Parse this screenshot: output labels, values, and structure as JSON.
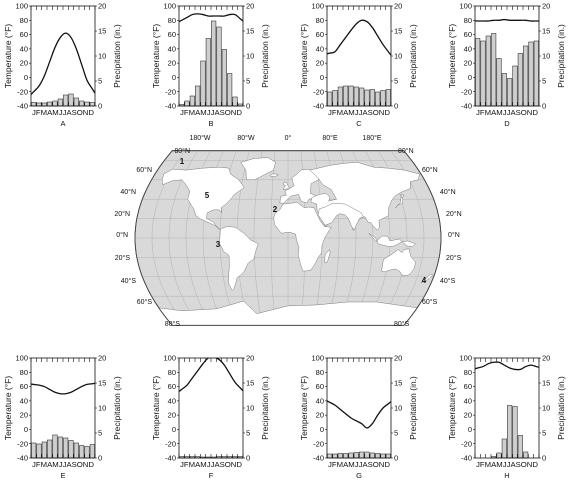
{
  "climographs": [
    {
      "id": "A",
      "temp_f": [
        -20,
        -12,
        2,
        22,
        42,
        56,
        62,
        56,
        40,
        18,
        -4,
        -16
      ],
      "precip_in": [
        0.7,
        0.6,
        0.6,
        0.8,
        1.0,
        1.4,
        2.2,
        2.4,
        1.6,
        1.0,
        0.8,
        0.7
      ]
    },
    {
      "id": "B",
      "temp_f": [
        80,
        84,
        88,
        89,
        88,
        86,
        86,
        86,
        86,
        88,
        88,
        82
      ],
      "precip_in": [
        0.3,
        1.0,
        2.0,
        4.0,
        9.0,
        13.5,
        17.0,
        15.8,
        11.3,
        6.5,
        1.8,
        0.4
      ]
    },
    {
      "id": "C",
      "temp_f": [
        34,
        36,
        46,
        56,
        66,
        75,
        80,
        78,
        70,
        58,
        46,
        36
      ],
      "precip_in": [
        2.8,
        3.1,
        3.8,
        4.0,
        4.0,
        3.8,
        3.6,
        3.2,
        3.3,
        2.8,
        3.1,
        3.3
      ]
    },
    {
      "id": "D",
      "temp_f": [
        79,
        79,
        79,
        80,
        80,
        81,
        80,
        80,
        80,
        80,
        79,
        79
      ],
      "precip_in": [
        13.5,
        13.0,
        14.0,
        14.5,
        9.5,
        6.5,
        5.5,
        8.0,
        10.5,
        12.0,
        12.8,
        13.0
      ]
    },
    {
      "id": "E",
      "temp_f": [
        63,
        62,
        60,
        56,
        52,
        50,
        50,
        52,
        56,
        60,
        63,
        64
      ],
      "precip_in": [
        3.0,
        2.8,
        3.2,
        3.6,
        4.6,
        4.2,
        4.0,
        3.5,
        3.0,
        2.5,
        2.3,
        2.7
      ]
    },
    {
      "id": "F",
      "temp_f": [
        56,
        62,
        72,
        82,
        92,
        100,
        101,
        98,
        90,
        78,
        66,
        58
      ],
      "precip_in": [
        0.3,
        0.3,
        0.3,
        0.3,
        0.2,
        0.2,
        0.2,
        0.3,
        0.3,
        0.3,
        0.3,
        0.3
      ]
    },
    {
      "id": "G",
      "temp_f": [
        38,
        34,
        28,
        22,
        16,
        12,
        8,
        2,
        8,
        20,
        30,
        36
      ],
      "precip_in": [
        0.8,
        0.8,
        0.9,
        0.9,
        1.0,
        1.1,
        1.2,
        1.2,
        1.0,
        0.9,
        0.8,
        0.8
      ]
    },
    {
      "id": "H",
      "temp_f": [
        86,
        88,
        92,
        94,
        94,
        90,
        86,
        84,
        84,
        88,
        90,
        88
      ],
      "precip_in": [
        0,
        0,
        0,
        0.3,
        1.0,
        3.8,
        10.5,
        10.3,
        4.5,
        1.2,
        0,
        0
      ]
    }
  ],
  "chart_labels": {
    "ylabel_left": "Temperature (°F)",
    "ylabel_right": "Precipitation (in.)",
    "months": "JFMAMJJASOND",
    "temp_ticks": [
      "100",
      "80",
      "60",
      "40",
      "20",
      "0",
      "-20",
      "-40"
    ],
    "precip_ticks": [
      "20",
      "15",
      "10",
      "5",
      "0"
    ],
    "temp_range": [
      -40,
      100
    ],
    "precip_range": [
      0,
      20
    ]
  },
  "map": {
    "lon_top": [
      "180°W",
      "80°W",
      "0°",
      "80°E",
      "180°E"
    ],
    "lat_left": [
      "80°N",
      "60°N",
      "40°N",
      "20°N",
      "0°N",
      "20°S",
      "40°S",
      "60°S",
      "80°S"
    ],
    "lat_right": [
      "80°N",
      "60°N",
      "40°N",
      "20°N",
      "0°N",
      "20°S",
      "40°S",
      "60°S",
      "80°S"
    ],
    "markers": [
      {
        "label": "1"
      },
      {
        "label": "2"
      },
      {
        "label": "3"
      },
      {
        "label": "4"
      },
      {
        "label": "5"
      }
    ],
    "colors": {
      "ocean": "#d9d9d9",
      "land": "#ffffff",
      "grid": "#a8a8a8",
      "border": "#7a7a7a"
    }
  }
}
